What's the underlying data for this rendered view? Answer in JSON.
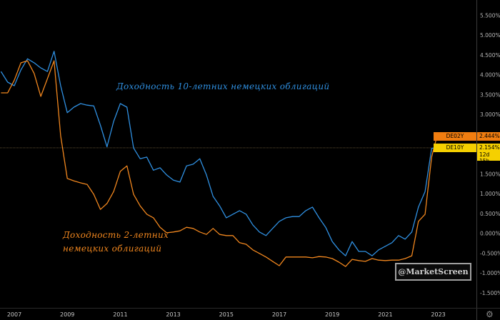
{
  "chart_data": {
    "type": "line",
    "title": "",
    "xlabel": "",
    "ylabel": "",
    "x": [
      2006.5,
      2006.75,
      2007,
      2007.25,
      2007.5,
      2007.75,
      2008,
      2008.25,
      2008.5,
      2008.75,
      2009,
      2009.25,
      2009.5,
      2009.75,
      2010,
      2010.25,
      2010.5,
      2010.75,
      2011,
      2011.25,
      2011.5,
      2011.75,
      2012,
      2012.25,
      2012.5,
      2012.75,
      2013,
      2013.25,
      2013.5,
      2013.75,
      2014,
      2014.25,
      2014.5,
      2014.75,
      2015,
      2015.25,
      2015.5,
      2015.75,
      2016,
      2016.25,
      2016.5,
      2016.75,
      2017,
      2017.25,
      2017.5,
      2017.75,
      2018,
      2018.25,
      2018.5,
      2018.75,
      2019,
      2019.25,
      2019.5,
      2019.75,
      2020,
      2020.25,
      2020.5,
      2020.75,
      2021,
      2021.25,
      2021.5,
      2021.75,
      2022,
      2022.25,
      2022.5,
      2022.75,
      2022.95
    ],
    "series": [
      {
        "name": "DE10Y",
        "color": "#2f8fe0",
        "values": [
          4.08,
          3.81,
          3.72,
          4.12,
          4.4,
          4.3,
          4.17,
          4.08,
          4.59,
          3.72,
          3.04,
          3.18,
          3.27,
          3.23,
          3.21,
          2.72,
          2.18,
          2.82,
          3.27,
          3.18,
          2.15,
          1.88,
          1.92,
          1.59,
          1.65,
          1.47,
          1.34,
          1.29,
          1.7,
          1.74,
          1.88,
          1.47,
          0.93,
          0.69,
          0.39,
          0.48,
          0.57,
          0.48,
          0.21,
          0.03,
          -0.06,
          0.12,
          0.3,
          0.39,
          0.42,
          0.42,
          0.57,
          0.66,
          0.39,
          0.15,
          -0.21,
          -0.42,
          -0.57,
          -0.21,
          -0.46,
          -0.46,
          -0.57,
          -0.42,
          -0.33,
          -0.24,
          -0.06,
          -0.15,
          0.03,
          0.66,
          1.05,
          2.14,
          2.154
        ]
      },
      {
        "name": "DE02Y",
        "color": "#f0861e",
        "values": [
          3.54,
          3.54,
          3.86,
          4.3,
          4.35,
          4.03,
          3.45,
          3.9,
          4.35,
          2.46,
          1.38,
          1.32,
          1.27,
          1.23,
          0.98,
          0.6,
          0.75,
          1.05,
          1.56,
          1.7,
          0.98,
          0.69,
          0.48,
          0.39,
          0.15,
          0.01,
          0.03,
          0.06,
          0.15,
          0.12,
          0.03,
          -0.03,
          0.12,
          -0.03,
          -0.06,
          -0.06,
          -0.24,
          -0.28,
          -0.42,
          -0.51,
          -0.6,
          -0.71,
          -0.82,
          -0.6,
          -0.6,
          -0.6,
          -0.6,
          -0.62,
          -0.59,
          -0.6,
          -0.64,
          -0.73,
          -0.84,
          -0.66,
          -0.69,
          -0.71,
          -0.64,
          -0.68,
          -0.69,
          -0.68,
          -0.68,
          -0.64,
          -0.57,
          0.3,
          0.48,
          1.92,
          2.444
        ]
      }
    ],
    "xlim": [
      2006.46,
      2023.7
    ],
    "ylim": [
      -1.8,
      5.9
    ],
    "x_ticks": [
      "2007",
      "2009",
      "2011",
      "2013",
      "2015",
      "2017",
      "2019",
      "2021",
      "2023"
    ],
    "y_ticks": [
      "5.500%",
      "5.000%",
      "4.500%",
      "4.000%",
      "3.500%",
      "3.000%",
      "1.500%",
      "1.000%",
      "0.500%",
      "0.000%",
      "-0.500%",
      "-1.000%",
      "-1.500%"
    ],
    "y_tick_values": [
      5.5,
      5.0,
      4.5,
      4.0,
      3.5,
      3.0,
      1.5,
      1.0,
      0.5,
      0.0,
      -0.5,
      -1.0,
      -1.5
    ],
    "annotations": {
      "de10y": "Доходность 10-летних немецких облигаций",
      "de02y_line1": "Доходность 2-летних",
      "de02y_line2": "немецких облигаций"
    },
    "grid": false,
    "crosshair_value": 2.154
  },
  "labels": {
    "de02y": {
      "name": "DE02Y",
      "value": "2.444%",
      "color": "#f07d10"
    },
    "de10y": {
      "name": "DE10Y",
      "value": "2.154%",
      "countdown": "12d 15h",
      "color": "#f5d000"
    }
  },
  "watermark": "@MarketScreen",
  "settings_icon": "gear-icon"
}
